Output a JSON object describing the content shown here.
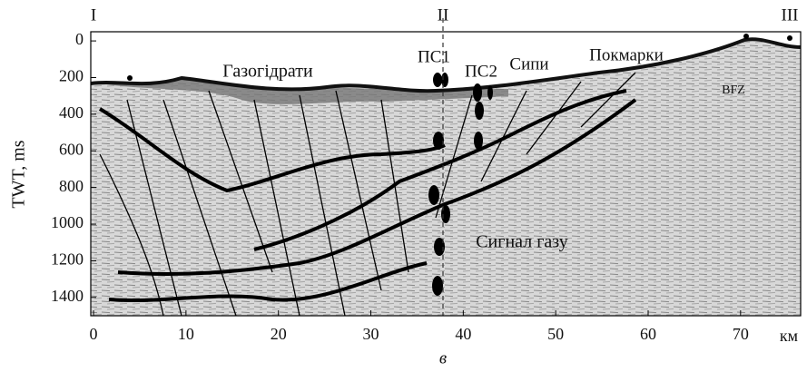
{
  "chart_data": {
    "type": "seismic-section",
    "ylabel": "TWT, ms",
    "xunit": "км",
    "caption": "в",
    "xlim": [
      -0.3,
      76.5
    ],
    "ylim": [
      -50,
      1500
    ],
    "xticks": [
      0,
      10,
      20,
      30,
      40,
      50,
      60,
      70
    ],
    "yticks": [
      0,
      200,
      400,
      600,
      800,
      1000,
      1200,
      1400
    ],
    "profile_marks": [
      "I",
      "II",
      "III"
    ],
    "annotations": [
      "Газогідрати",
      "ПС1",
      "ПС2",
      "Сипи",
      "Покмарки",
      "BFZ",
      "Сигнал газу"
    ]
  }
}
